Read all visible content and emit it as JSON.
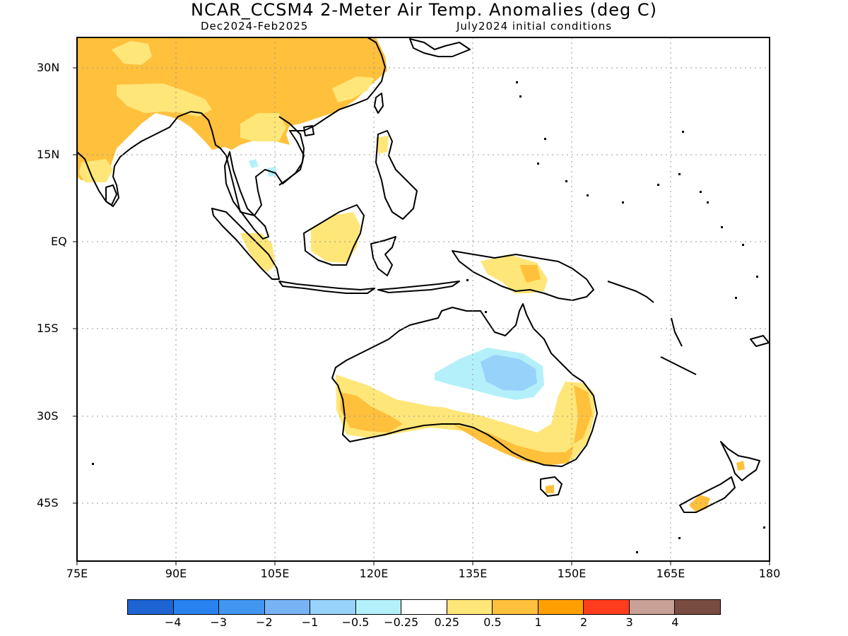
{
  "header": {
    "title": "NCAR_CCSM4 2-Meter Air Temp. Anomalies (deg C)",
    "season": "Dec2024-Feb2025",
    "init": "July2024 initial conditions"
  },
  "map_axes": {
    "lat_labels": [
      "30N",
      "15N",
      "EQ",
      "15S",
      "30S",
      "45S"
    ],
    "lon_labels": [
      "75E",
      "90E",
      "105E",
      "120E",
      "135E",
      "150E",
      "165E",
      "180"
    ],
    "lat_range": [
      -55,
      35
    ],
    "lon_range": [
      75,
      180
    ],
    "grid": "dotted"
  },
  "colorbar": {
    "colors": [
      "#1e64d2",
      "#2882f0",
      "#4196f0",
      "#78b4f5",
      "#96d2fa",
      "#b4f0fa",
      "#ffffff",
      "#ffe678",
      "#ffc03c",
      "#ffa000",
      "#ff3c1e",
      "#c8a096",
      "#784c41"
    ],
    "labels": [
      "−4",
      "−3",
      "−2",
      "−1",
      "−0.5",
      "−0.25",
      "0.25",
      "0.5",
      "1",
      "2",
      "3",
      "4"
    ]
  }
}
